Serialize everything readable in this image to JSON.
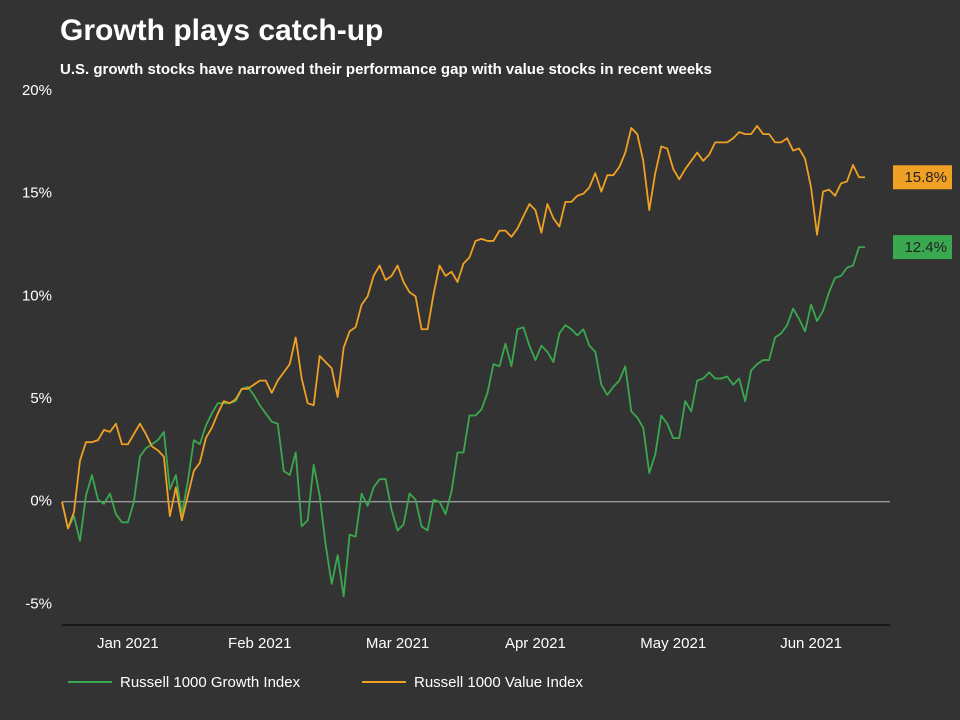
{
  "chart_data": {
    "type": "line",
    "title": "Growth plays catch-up",
    "subtitle": "U.S. growth stocks have narrowed their performance gap with value stocks in recent weeks",
    "x": [
      0,
      1,
      2,
      3,
      4,
      5,
      6,
      7,
      8,
      9,
      10,
      11,
      12,
      13,
      14,
      15,
      16,
      17,
      18,
      19,
      20,
      21,
      22,
      23,
      24,
      25,
      26,
      27,
      28,
      29,
      30,
      31,
      32,
      33,
      34,
      35,
      36,
      37,
      38,
      39,
      40,
      41,
      42,
      43,
      44,
      45,
      46,
      47,
      48,
      49,
      50,
      51,
      52,
      53,
      54,
      55,
      56,
      57,
      58,
      59,
      60,
      61,
      62,
      63,
      64,
      65,
      66,
      67,
      68,
      69,
      70,
      71,
      72,
      73,
      74,
      75,
      76,
      77,
      78,
      79,
      80,
      81,
      82,
      83,
      84,
      85,
      86,
      87,
      88,
      89,
      90,
      91,
      92,
      93,
      94,
      95,
      96,
      97,
      98,
      99,
      100,
      101,
      102,
      103,
      104,
      105,
      106,
      107,
      108,
      109,
      110,
      111,
      112,
      113,
      114,
      115,
      116,
      117,
      118,
      119,
      120,
      121,
      122,
      123,
      124,
      125,
      126,
      127,
      128,
      129,
      130,
      131,
      132,
      133,
      134
    ],
    "xlim": [
      0,
      134
    ],
    "xticks": [
      {
        "value": 11,
        "label": "Jan 2021"
      },
      {
        "value": 33,
        "label": "Feb 2021"
      },
      {
        "value": 56,
        "label": "Mar 2021"
      },
      {
        "value": 79,
        "label": "Apr 2021"
      },
      {
        "value": 102,
        "label": "May 2021"
      },
      {
        "value": 125,
        "label": "Jun 2021"
      }
    ],
    "ylim": [
      -6,
      20
    ],
    "yticks": [
      {
        "value": -5,
        "label": "-5%"
      },
      {
        "value": 0,
        "label": "0%"
      },
      {
        "value": 5,
        "label": "5%"
      },
      {
        "value": 10,
        "label": "10%"
      },
      {
        "value": 15,
        "label": "15%"
      },
      {
        "value": 20,
        "label": "20%"
      }
    ],
    "zero_line": true,
    "legend": "bottom",
    "series": [
      {
        "name": "Russell 1000 Growth Index",
        "color": "#3aa84f",
        "last_label": "12.4%",
        "values": [
          0,
          -1.3,
          -0.7,
          -1.9,
          0.3,
          1.3,
          0.1,
          -0.1,
          0.4,
          -0.6,
          -1.0,
          -1.0,
          0.0,
          2.2,
          2.6,
          2.8,
          3.0,
          3.4,
          0.6,
          1.3,
          -0.6,
          1.0,
          3.0,
          2.8,
          3.7,
          4.3,
          4.8,
          4.8,
          4.8,
          4.9,
          5.5,
          5.6,
          5.2,
          4.7,
          4.3,
          3.9,
          3.8,
          1.5,
          1.3,
          2.4,
          -1.2,
          -0.9,
          1.8,
          0.3,
          -2.1,
          -4.0,
          -2.6,
          -4.6,
          -1.6,
          -1.7,
          0.4,
          -0.2,
          0.7,
          1.1,
          1.1,
          -0.4,
          -1.4,
          -1.1,
          0.4,
          0.1,
          -1.2,
          -1.4,
          0.1,
          0.0,
          -0.6,
          0.5,
          2.4,
          2.4,
          4.2,
          4.2,
          4.5,
          5.3,
          6.7,
          6.6,
          7.7,
          6.6,
          8.4,
          8.5,
          7.6,
          6.9,
          7.6,
          7.3,
          6.8,
          8.2,
          8.6,
          8.4,
          8.1,
          8.4,
          7.6,
          7.3,
          5.7,
          5.2,
          5.6,
          5.9,
          6.6,
          4.4,
          4.1,
          3.6,
          1.4,
          2.3,
          4.2,
          3.8,
          3.1,
          3.1,
          4.9,
          4.4,
          5.9,
          6.0,
          6.3,
          6.0,
          6.0,
          6.1,
          5.7,
          6.0,
          4.9,
          6.4,
          6.7,
          6.9,
          6.9,
          8.0,
          8.2,
          8.6,
          9.4,
          8.9,
          8.3,
          9.6,
          8.8,
          9.3,
          10.2,
          10.9,
          11.0,
          11.4,
          11.5,
          12.4,
          12.4
        ]
      },
      {
        "name": "Russell 1000 Value Index",
        "color": "#f0a024",
        "last_label": "15.8%",
        "values": [
          0,
          -1.3,
          -0.5,
          2.0,
          2.9,
          2.9,
          3.0,
          3.5,
          3.4,
          3.8,
          2.8,
          2.8,
          3.3,
          3.8,
          3.3,
          2.7,
          2.5,
          2.2,
          -0.7,
          0.7,
          -0.9,
          0.3,
          1.5,
          1.9,
          3.1,
          3.6,
          4.3,
          4.9,
          4.8,
          5.0,
          5.5,
          5.5,
          5.7,
          5.9,
          5.9,
          5.3,
          5.9,
          6.3,
          6.7,
          8.0,
          6.0,
          4.8,
          4.7,
          7.1,
          6.8,
          6.5,
          5.1,
          7.5,
          8.3,
          8.5,
          9.6,
          10.0,
          11.0,
          11.5,
          10.8,
          11.0,
          11.5,
          10.7,
          10.2,
          10.0,
          8.4,
          8.4,
          10.1,
          11.5,
          11.0,
          11.2,
          10.7,
          11.6,
          11.9,
          12.7,
          12.8,
          12.7,
          12.7,
          13.2,
          13.2,
          12.9,
          13.3,
          13.9,
          14.5,
          14.2,
          13.1,
          14.5,
          13.8,
          13.4,
          14.6,
          14.6,
          14.9,
          15.0,
          15.3,
          16.0,
          15.1,
          15.9,
          15.9,
          16.3,
          17.0,
          18.2,
          17.9,
          16.6,
          14.2,
          16.0,
          17.3,
          17.2,
          16.2,
          15.7,
          16.2,
          16.6,
          17.0,
          16.6,
          16.9,
          17.5,
          17.5,
          17.5,
          17.7,
          18.0,
          17.9,
          17.9,
          18.3,
          17.9,
          17.9,
          17.5,
          17.5,
          17.7,
          17.1,
          17.2,
          16.7,
          15.3,
          13.0,
          15.1,
          15.2,
          14.9,
          15.5,
          15.6,
          16.4,
          15.8,
          15.8
        ]
      }
    ]
  }
}
